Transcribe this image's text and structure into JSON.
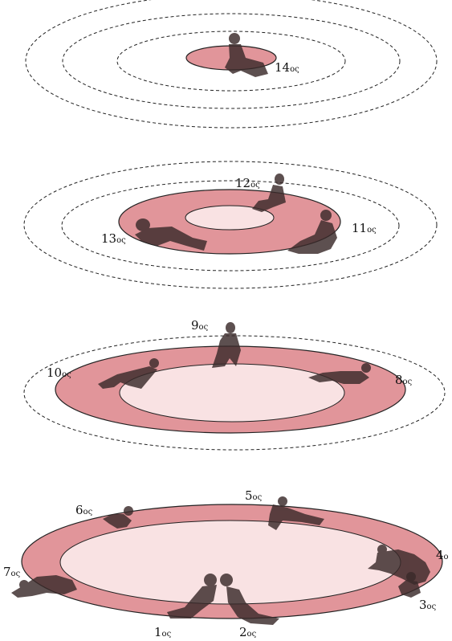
{
  "colors": {
    "ring_fill": "#e1959a",
    "inner_fill": "#f9e2e3",
    "figure": "#3a2a2a",
    "stroke": "#222222"
  },
  "labels": {
    "l14": {
      "num": "14",
      "suf": "ος"
    },
    "l12": {
      "num": "12",
      "suf": "ος"
    },
    "l13": {
      "num": "13",
      "suf": "ος"
    },
    "l11": {
      "num": "11",
      "suf": "ος"
    },
    "l9": {
      "num": "9",
      "suf": "ος"
    },
    "l10": {
      "num": "10",
      "suf": "ος"
    },
    "l8": {
      "num": "8",
      "suf": "ος"
    },
    "l5": {
      "num": "5",
      "suf": "ος"
    },
    "l6": {
      "num": "6",
      "suf": "ος"
    },
    "l4": {
      "num": "4",
      "suf": "ο"
    },
    "l7": {
      "num": "7",
      "suf": "ος"
    },
    "l3": {
      "num": "3",
      "suf": "ος"
    },
    "l1": {
      "num": "1",
      "suf": "ος"
    },
    "l2": {
      "num": "2",
      "suf": "ος"
    }
  }
}
